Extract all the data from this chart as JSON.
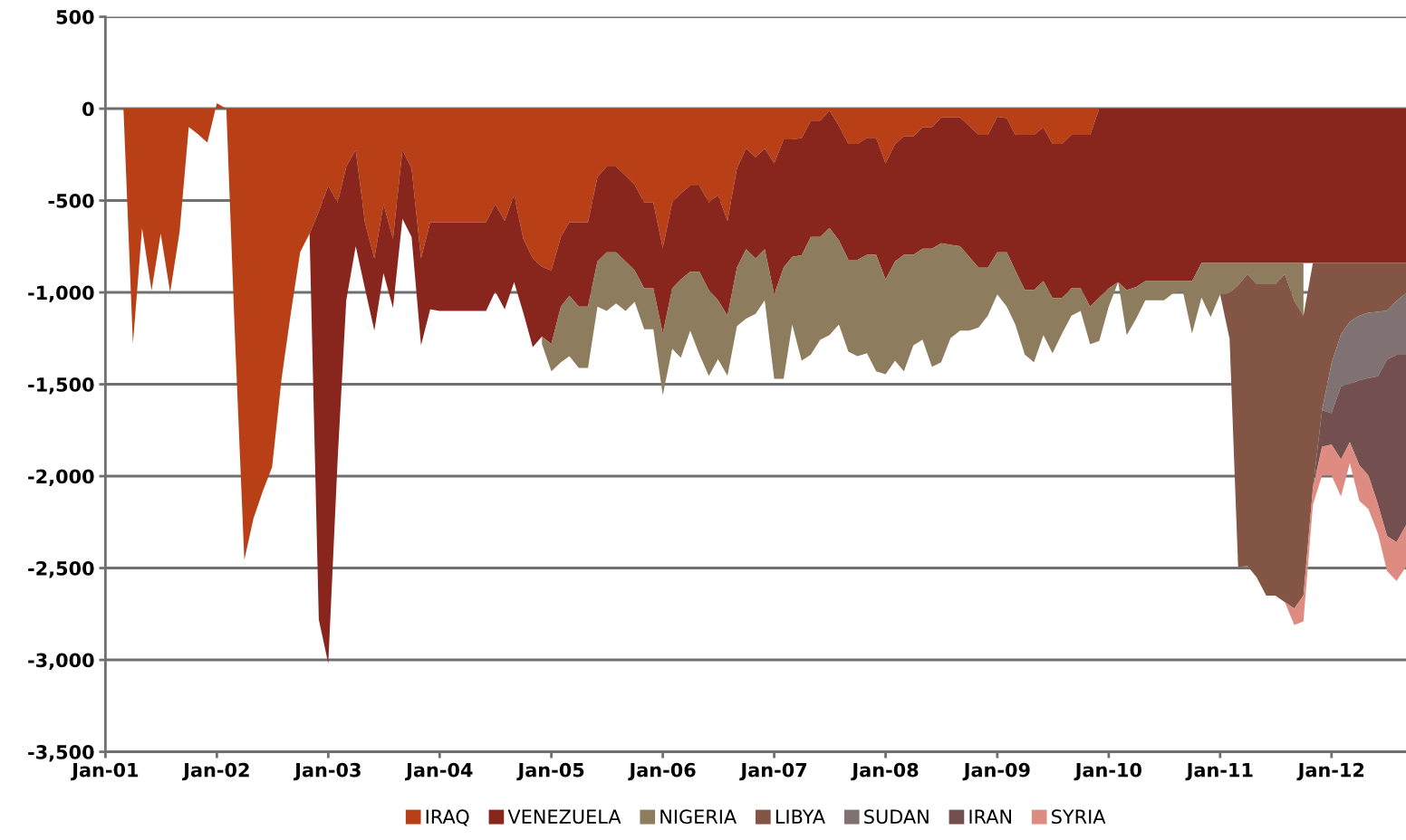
{
  "chart_data": {
    "type": "area",
    "stacked": true,
    "x": [
      "2001-02",
      "2001-03",
      "2001-04",
      "2001-05",
      "2001-06",
      "2001-07",
      "2001-08",
      "2001-09",
      "2001-10",
      "2001-11",
      "2001-12",
      "2002-01",
      "2002-02",
      "2002-03",
      "2002-04",
      "2002-05",
      "2002-06",
      "2002-07",
      "2002-08",
      "2002-09",
      "2002-10",
      "2002-11",
      "2002-12",
      "2003-01",
      "2003-02",
      "2003-03",
      "2003-04",
      "2003-05",
      "2003-06",
      "2003-07",
      "2003-08",
      "2003-09",
      "2003-10",
      "2003-11",
      "2003-12",
      "2004-01",
      "2004-02",
      "2004-03",
      "2004-04",
      "2004-05",
      "2004-06",
      "2004-07",
      "2004-08",
      "2004-09",
      "2004-10",
      "2004-11",
      "2004-12",
      "2005-01",
      "2005-02",
      "2005-03",
      "2005-04",
      "2005-05",
      "2005-06",
      "2005-07",
      "2005-08",
      "2005-09",
      "2005-10",
      "2005-11",
      "2005-12",
      "2006-01",
      "2006-02",
      "2006-03",
      "2006-04",
      "2006-05",
      "2006-06",
      "2006-07",
      "2006-08",
      "2006-09",
      "2006-10",
      "2006-11",
      "2006-12",
      "2007-01",
      "2007-02",
      "2007-03",
      "2007-04",
      "2007-05",
      "2007-06",
      "2007-07",
      "2007-08",
      "2007-09",
      "2007-10",
      "2007-11",
      "2007-12",
      "2008-01",
      "2008-02",
      "2008-03",
      "2008-04",
      "2008-05",
      "2008-06",
      "2008-07",
      "2008-08",
      "2008-09",
      "2008-10",
      "2008-11",
      "2008-12",
      "2009-01",
      "2009-02",
      "2009-03",
      "2009-04",
      "2009-05",
      "2009-06",
      "2009-07",
      "2009-08",
      "2009-09",
      "2009-10",
      "2009-11",
      "2009-12",
      "2010-01",
      "2010-02",
      "2010-03",
      "2010-04",
      "2010-05",
      "2010-06",
      "2010-07",
      "2010-08",
      "2010-09",
      "2010-10",
      "2010-11",
      "2010-12",
      "2011-01",
      "2011-02",
      "2011-03",
      "2011-04",
      "2011-05",
      "2011-06",
      "2011-07",
      "2011-08",
      "2011-09",
      "2011-10",
      "2011-11",
      "2011-12",
      "2012-01",
      "2012-02",
      "2012-03",
      "2012-04",
      "2012-05",
      "2012-06",
      "2012-07",
      "2012-08",
      "2012-09"
    ],
    "series": [
      {
        "name": "IRAQ",
        "color": "#b83f16",
        "values": [
          0,
          0,
          -1281,
          -650,
          -990,
          -680,
          -1000,
          -670,
          -100,
          -140,
          -185,
          30,
          0,
          -1230,
          -2455,
          -2230,
          -2080,
          -1950,
          -1470,
          -1105,
          -780,
          -680,
          -560,
          -420,
          -511,
          -315,
          -225,
          -618,
          -815,
          -520,
          -708,
          -225,
          -323,
          -815,
          -618,
          -618,
          -618,
          -618,
          -618,
          -618,
          -618,
          -520,
          -610,
          -470,
          -708,
          -815,
          -860,
          -880,
          -698,
          -618,
          -618,
          -618,
          -372,
          -315,
          -315,
          -364,
          -413,
          -511,
          -511,
          -757,
          -511,
          -462,
          -418,
          -418,
          -511,
          -470,
          -610,
          -323,
          -216,
          -265,
          -216,
          -298,
          -167,
          -167,
          -160,
          -65,
          -65,
          -10,
          -93,
          -192,
          -192,
          -159,
          -159,
          -298,
          -192,
          -151,
          -151,
          -102,
          -102,
          -48,
          -48,
          -48,
          -93,
          -143,
          -143,
          -44,
          -52,
          -143,
          -143,
          -143,
          -102,
          -192,
          -192,
          -143,
          -143,
          -143,
          0,
          null,
          null,
          null,
          null,
          null,
          null,
          null,
          null,
          null,
          null,
          null,
          null,
          null,
          null,
          null,
          null,
          null,
          null,
          null,
          null,
          null,
          null,
          null,
          null,
          null,
          null,
          null,
          null,
          null,
          null,
          null,
          null,
          null
        ]
      },
      {
        "name": "VENEZUELA",
        "color": "#88261e",
        "values": [
          null,
          null,
          null,
          null,
          null,
          null,
          null,
          null,
          null,
          null,
          null,
          null,
          null,
          null,
          null,
          null,
          null,
          null,
          null,
          null,
          null,
          -20,
          -2220,
          -2600,
          -1389,
          -728,
          -523,
          -360,
          -393,
          -375,
          -377,
          -375,
          -375,
          -473,
          -474,
          -483,
          -483,
          -483,
          -483,
          -483,
          -483,
          -475,
          -482,
          -474,
          -402,
          -483,
          -380,
          -400,
          -379,
          -400,
          -459,
          -459,
          -459,
          -467,
          -467,
          -467,
          -467,
          -467,
          -467,
          -467,
          -467,
          -467,
          -470,
          -470,
          -476,
          -573,
          -516,
          -541,
          -549,
          -550,
          -549,
          -713,
          -697,
          -639,
          -638,
          -633,
          -633,
          -639,
          -623,
          -630,
          -630,
          -636,
          -636,
          -631,
          -639,
          -644,
          -644,
          -660,
          -660,
          -685,
          -693,
          -700,
          -713,
          -722,
          -722,
          -738,
          -730,
          -737,
          -844,
          -844,
          -836,
          -839,
          -839,
          -835,
          -835,
          -934,
          -1028,
          -978,
          -944,
          -987,
          -970,
          -938,
          -938,
          -938,
          -938,
          -938,
          -938,
          -840,
          -840,
          -840,
          -840,
          -840,
          -840,
          -840,
          -840,
          -840,
          -840,
          -840,
          -840,
          -840,
          -840,
          -840,
          -840,
          -840,
          -840,
          -840,
          -840,
          -840,
          -840,
          -840
        ]
      },
      {
        "name": "NIGERIA",
        "color": "#8d7c5e",
        "values": [
          null,
          null,
          null,
          null,
          null,
          null,
          null,
          null,
          null,
          null,
          null,
          null,
          null,
          null,
          null,
          null,
          null,
          null,
          null,
          null,
          null,
          null,
          null,
          null,
          null,
          null,
          null,
          null,
          null,
          null,
          null,
          null,
          null,
          null,
          null,
          null,
          null,
          null,
          null,
          null,
          null,
          null,
          null,
          null,
          null,
          null,
          -40,
          -150,
          -303,
          -329,
          -334,
          -334,
          -246,
          -319,
          -278,
          -270,
          -172,
          -222,
          -222,
          -335,
          -328,
          -427,
          -320,
          -450,
          -467,
          -320,
          -328,
          -319,
          -377,
          -302,
          -278,
          -459,
          -606,
          -369,
          -574,
          -640,
          -559,
          -583,
          -459,
          -500,
          -525,
          -536,
          -634,
          -517,
          -541,
          -634,
          -493,
          -495,
          -643,
          -647,
          -508,
          -460,
          -402,
          -325,
          -261,
          -229,
          -295,
          -295,
          -351,
          -393,
          -294,
          -300,
          -193,
          -148,
          -123,
          -205,
          -236,
          -99,
          0,
          -245,
          -172,
          -105,
          -105,
          -105,
          -65,
          -57,
          -286,
          -188,
          -294,
          -171,
          -163,
          -120,
          -60,
          -115,
          -115,
          -115,
          -60,
          -207,
          -286,
          null,
          null,
          null,
          null,
          null,
          null,
          null,
          null,
          null,
          null,
          null
        ]
      },
      {
        "name": "LIBYA",
        "color": "#835545",
        "values": [
          null,
          null,
          null,
          null,
          null,
          null,
          null,
          null,
          null,
          null,
          null,
          null,
          null,
          null,
          null,
          null,
          null,
          null,
          null,
          null,
          null,
          null,
          null,
          null,
          null,
          null,
          null,
          null,
          null,
          null,
          null,
          null,
          null,
          null,
          null,
          null,
          null,
          null,
          null,
          null,
          null,
          null,
          null,
          null,
          null,
          null,
          null,
          null,
          null,
          null,
          null,
          null,
          null,
          null,
          null,
          null,
          null,
          null,
          null,
          null,
          null,
          null,
          null,
          null,
          null,
          null,
          null,
          null,
          null,
          null,
          null,
          null,
          null,
          null,
          null,
          null,
          null,
          null,
          null,
          null,
          null,
          null,
          null,
          null,
          null,
          null,
          null,
          null,
          null,
          null,
          null,
          null,
          null,
          null,
          null,
          null,
          null,
          null,
          null,
          null,
          null,
          null,
          null,
          null,
          null,
          null,
          null,
          null,
          null,
          null,
          null,
          null,
          null,
          null,
          null,
          null,
          null,
          null,
          null,
          0,
          -249,
          -1533,
          -1590,
          -1597,
          -1695,
          -1695,
          -1786,
          -1673,
          -1524,
          -1225,
          -800,
          -547,
          -389,
          -320,
          -286,
          -270,
          -265,
          -260,
          -207,
          -163
        ]
      },
      {
        "name": "SUDAN",
        "color": "#807273",
        "values": [
          null,
          null,
          null,
          null,
          null,
          null,
          null,
          null,
          null,
          null,
          null,
          null,
          null,
          null,
          null,
          null,
          null,
          null,
          null,
          null,
          null,
          null,
          null,
          null,
          null,
          null,
          null,
          null,
          null,
          null,
          null,
          null,
          null,
          null,
          null,
          null,
          null,
          null,
          null,
          null,
          null,
          null,
          null,
          null,
          null,
          null,
          null,
          null,
          null,
          null,
          null,
          null,
          null,
          null,
          null,
          null,
          null,
          null,
          null,
          null,
          null,
          null,
          null,
          null,
          null,
          null,
          null,
          null,
          null,
          null,
          null,
          null,
          null,
          null,
          null,
          null,
          null,
          null,
          null,
          null,
          null,
          null,
          null,
          null,
          null,
          null,
          null,
          null,
          null,
          null,
          null,
          null,
          null,
          null,
          null,
          null,
          null,
          null,
          null,
          null,
          null,
          null,
          null,
          null,
          null,
          null,
          null,
          null,
          null,
          null,
          null,
          null,
          null,
          null,
          null,
          null,
          null,
          null,
          null,
          null,
          null,
          null,
          null,
          null,
          null,
          null,
          null,
          null,
          null,
          null,
          0,
          -270,
          -282,
          -340,
          -352,
          -357,
          -352,
          -265,
          -293,
          -337
        ]
      },
      {
        "name": "IRAN",
        "color": "#734f4f",
        "values": [
          null,
          null,
          null,
          null,
          null,
          null,
          null,
          null,
          null,
          null,
          null,
          null,
          null,
          null,
          null,
          null,
          null,
          null,
          null,
          null,
          null,
          null,
          null,
          null,
          null,
          null,
          null,
          null,
          null,
          null,
          null,
          null,
          null,
          null,
          null,
          null,
          null,
          null,
          null,
          null,
          null,
          null,
          null,
          null,
          null,
          null,
          null,
          null,
          null,
          null,
          null,
          null,
          null,
          null,
          null,
          null,
          null,
          null,
          null,
          null,
          null,
          null,
          null,
          null,
          null,
          null,
          null,
          null,
          null,
          null,
          null,
          null,
          null,
          null,
          null,
          null,
          null,
          null,
          null,
          null,
          null,
          null,
          null,
          null,
          null,
          null,
          null,
          null,
          null,
          null,
          null,
          null,
          null,
          null,
          null,
          null,
          null,
          null,
          null,
          null,
          null,
          null,
          null,
          null,
          null,
          null,
          null,
          null,
          null,
          null,
          null,
          null,
          null,
          null,
          null,
          null,
          null,
          null,
          null,
          null,
          null,
          null,
          null,
          null,
          null,
          null,
          null,
          null,
          null,
          0,
          -200,
          -171,
          -397,
          -315,
          -462,
          -529,
          -697,
          -961,
          -1019,
          -927
        ]
      },
      {
        "name": "SYRIA",
        "color": "#de8c82",
        "values": [
          null,
          null,
          null,
          null,
          null,
          null,
          null,
          null,
          null,
          null,
          null,
          null,
          null,
          null,
          null,
          null,
          null,
          null,
          null,
          null,
          null,
          null,
          null,
          null,
          null,
          null,
          null,
          null,
          null,
          null,
          null,
          null,
          null,
          null,
          null,
          null,
          null,
          null,
          null,
          null,
          null,
          null,
          null,
          null,
          null,
          null,
          null,
          null,
          null,
          null,
          null,
          null,
          null,
          null,
          null,
          null,
          null,
          null,
          null,
          null,
          null,
          null,
          null,
          null,
          null,
          null,
          null,
          null,
          null,
          null,
          null,
          null,
          null,
          null,
          null,
          null,
          null,
          null,
          null,
          null,
          null,
          null,
          null,
          null,
          null,
          null,
          null,
          null,
          null,
          null,
          null,
          null,
          null,
          null,
          null,
          null,
          null,
          null,
          null,
          null,
          null,
          null,
          null,
          null,
          null,
          null,
          null,
          null,
          null,
          null,
          null,
          null,
          null,
          null,
          null,
          null,
          null,
          null,
          null,
          null,
          null,
          null,
          null,
          null,
          null,
          null,
          0,
          -90,
          -140,
          -90,
          -156,
          -168,
          -202,
          -113,
          -194,
          -184,
          -159,
          -191,
          -211,
          -226
        ]
      }
    ],
    "xlim": [
      "2001-01",
      "2012-09"
    ],
    "xticks": [
      {
        "value": "2001-01",
        "label": "Jan-01"
      },
      {
        "value": "2002-01",
        "label": "Jan-02"
      },
      {
        "value": "2003-01",
        "label": "Jan-03"
      },
      {
        "value": "2004-01",
        "label": "Jan-04"
      },
      {
        "value": "2005-01",
        "label": "Jan-05"
      },
      {
        "value": "2006-01",
        "label": "Jan-06"
      },
      {
        "value": "2007-01",
        "label": "Jan-07"
      },
      {
        "value": "2008-01",
        "label": "Jan-08"
      },
      {
        "value": "2009-01",
        "label": "Jan-09"
      },
      {
        "value": "2010-01",
        "label": "Jan-10"
      },
      {
        "value": "2011-01",
        "label": "Jan-11"
      },
      {
        "value": "2012-01",
        "label": "Jan-12"
      }
    ],
    "ylim": [
      -3500,
      500
    ],
    "yticks": [
      500,
      {
        "value": 0,
        "label": "0"
      },
      {
        "value": -500,
        "label": "-500"
      },
      {
        "value": -1000,
        "label": "-1,000"
      },
      {
        "value": -1500,
        "label": "-1,500"
      },
      {
        "value": -2000,
        "label": "-2,000"
      },
      {
        "value": -2500,
        "label": "-2,500"
      },
      {
        "value": -3000,
        "label": "-3,000"
      },
      {
        "value": -3500,
        "label": "-3,500"
      }
    ],
    "grid": "y",
    "legend": "bottom"
  }
}
